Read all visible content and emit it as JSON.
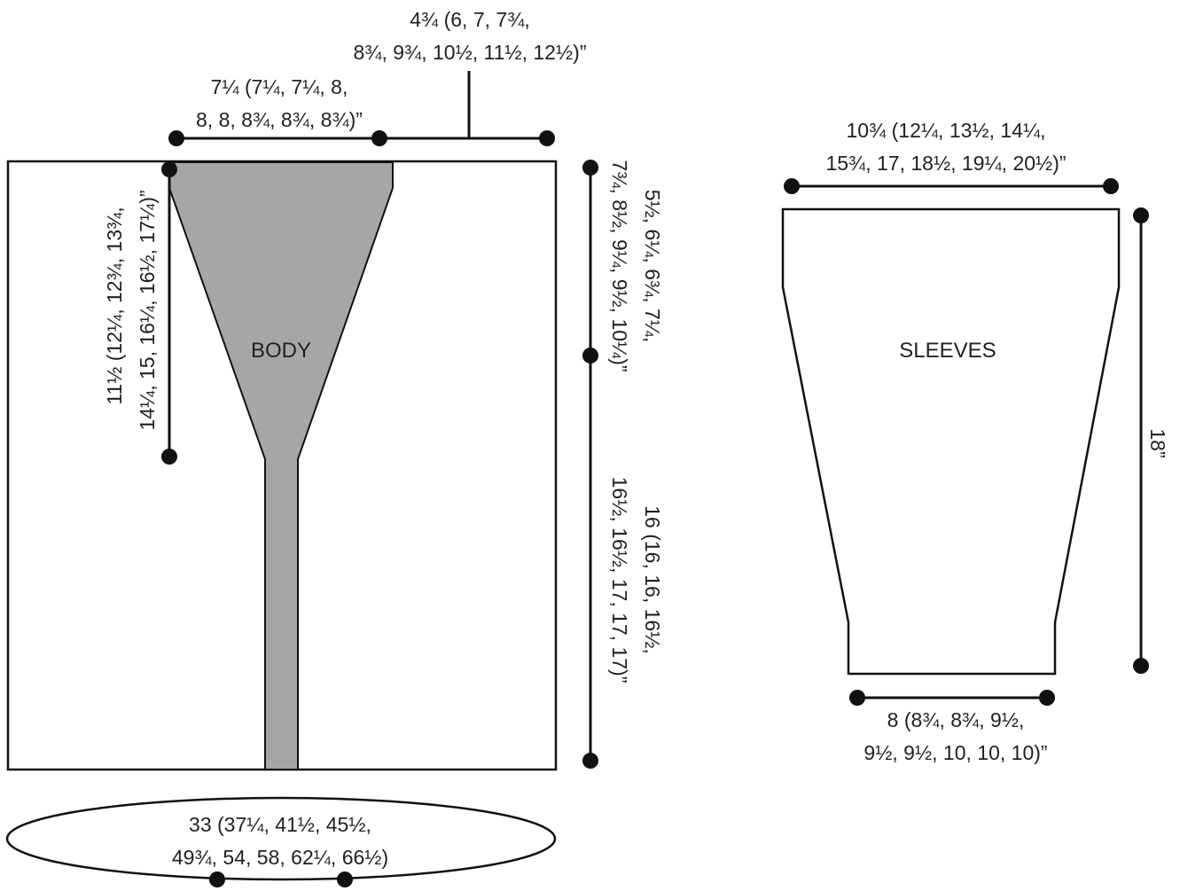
{
  "pieces": {
    "body": {
      "name": "BODY",
      "fill_color": "#a6a6a6"
    },
    "sleeves": {
      "name": "SLEEVES"
    }
  },
  "measurements": {
    "neck_width": {
      "line1": "4¾ (6, 7, 7¾,",
      "line2": "8¾, 9¾, 10½, 11½, 12½)”"
    },
    "shoulder_width": {
      "line1": "7¼ (7¼, 7¼, 8,",
      "line2": "8, 8, 8¾, 8¾, 8¾)”"
    },
    "armhole_depth": {
      "line1": "11½ (12¼, 12¾, 13¾,",
      "line2": "14¼, 15, 16¼, 16½, 17¼)”"
    },
    "upper_length": {
      "line1": "5½, 6¼, 6¾, 7¼,",
      "line2": "7¾, 8½, 9¼, 9½, 10¼)”"
    },
    "lower_length": {
      "line1": "16 (16, 16, 16½,",
      "line2": "16½, 16½, 17, 17, 17)”"
    },
    "chest_circumference": {
      "line1": "33 (37¼, 41½, 45½,",
      "line2": "49¾, 54, 58, 62¼, 66½)"
    },
    "sleeve_top_width": {
      "line1": "10¾ (12¼, 13½, 14¼,",
      "line2": "15¾, 17, 18½, 19¼, 20½)”"
    },
    "sleeve_length": {
      "line1": "18”"
    },
    "sleeve_cuff_width": {
      "line1": "8 (8¾, 8¾, 9½,",
      "line2": "9½, 9½, 10, 10, 10)”"
    }
  }
}
